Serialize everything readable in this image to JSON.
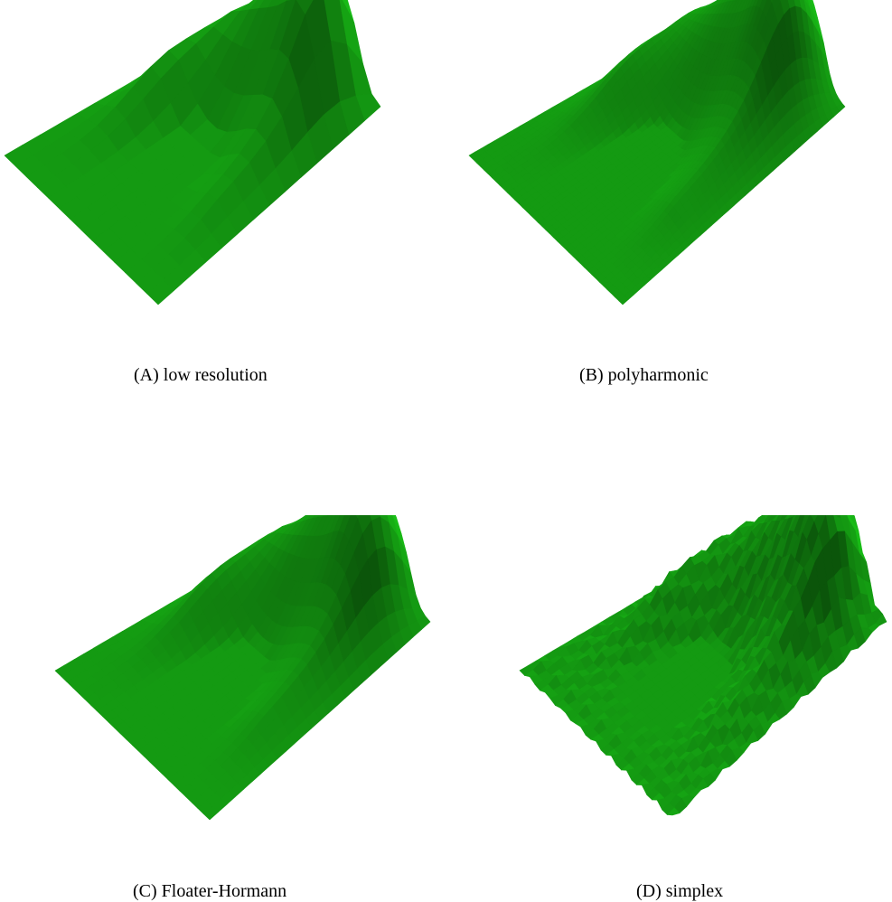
{
  "figure": {
    "surface_color": "#149a14",
    "panels": [
      {
        "id": "a",
        "label": "(A)",
        "caption": "low resolution",
        "grid": 14
      },
      {
        "id": "b",
        "label": "(B)",
        "caption": "polyharmonic",
        "grid": 40
      },
      {
        "id": "c",
        "label": "(C)",
        "caption": "Floater-Hormann",
        "grid": 26
      },
      {
        "id": "d",
        "label": "(D)",
        "caption": "simplex",
        "grid": 30
      }
    ]
  }
}
